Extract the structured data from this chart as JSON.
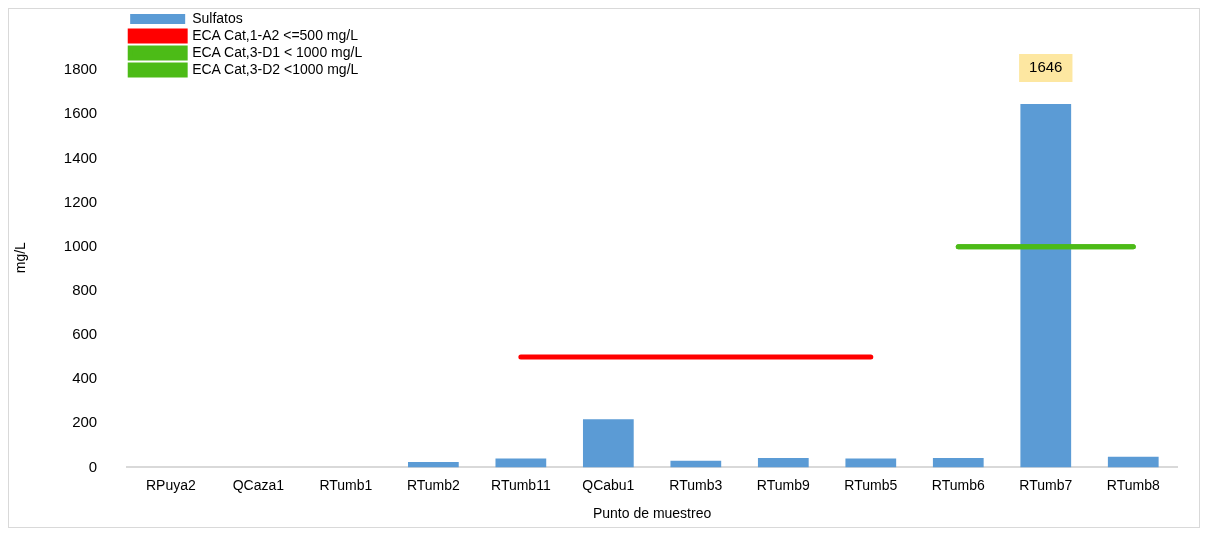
{
  "chart_data": {
    "type": "bar",
    "xlabel": "Punto de muestreo",
    "ylabel": "mg/L",
    "categories": [
      "RPuya2",
      "QCaza1",
      "RTumb1",
      "RTumb2",
      "RTumb11",
      "QCabu1",
      "RTumb3",
      "RTumb9",
      "RTumb5",
      "RTumb6",
      "RTumb7",
      "RTumb8"
    ],
    "series": [
      {
        "name": "Sulfatos",
        "color": "#5b9bd5",
        "values": [
          null,
          null,
          null,
          25,
          40,
          218,
          30,
          43,
          40,
          43,
          1646,
          48
        ],
        "value_labels": [
          null,
          null,
          null,
          null,
          null,
          null,
          null,
          null,
          null,
          null,
          "1646",
          null
        ]
      },
      {
        "name": "ECA Cat,1-A2 <=500 mg/L",
        "type": "line",
        "color": "#ff0000",
        "values": [
          null,
          null,
          null,
          null,
          500,
          500,
          500,
          500,
          500,
          null,
          null,
          null
        ]
      },
      {
        "name": "ECA Cat,3-D1 < 1000 mg/L",
        "type": "line",
        "color": "#4cbb17",
        "values": [
          null,
          null,
          null,
          null,
          null,
          null,
          null,
          null,
          null,
          1000,
          1000,
          1000
        ]
      },
      {
        "name": "ECA Cat,3-D2 <1000 mg/L",
        "type": "line",
        "color": "#4cbb17",
        "values": [
          null,
          null,
          null,
          null,
          null,
          null,
          null,
          null,
          null,
          1000,
          1000,
          1000
        ]
      }
    ],
    "ylim": [
      0,
      1900
    ],
    "yticks": [
      0,
      200,
      400,
      600,
      800,
      1000,
      1200,
      1400,
      1600,
      1800
    ],
    "grid": false,
    "legend": "top left",
    "marker": "none",
    "line_style": "solid"
  }
}
